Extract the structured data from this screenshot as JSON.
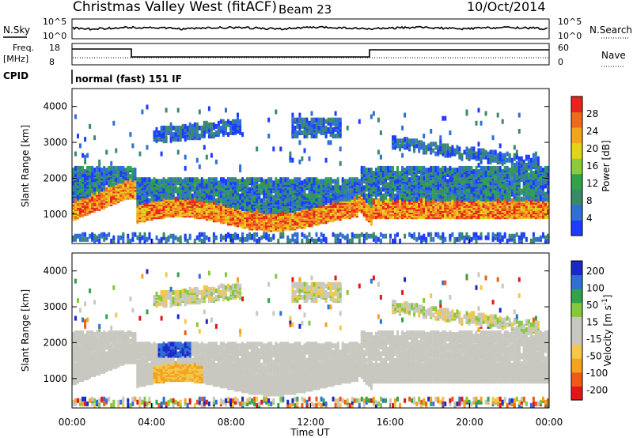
{
  "header": {
    "station": "Christmas Valley West (fitACF)",
    "beam": "Beam 23",
    "date": "10/Oct/2014"
  },
  "noise_panel": {
    "left_label": "N.Sky",
    "right_label": "N.Search",
    "left_ticks": [
      "10^5",
      "10^0"
    ],
    "right_ticks": [
      "10^5",
      "10^0"
    ]
  },
  "freq_panel": {
    "left_label_1": "Freq.",
    "left_label_2": "[MHz]",
    "right_label": "Nave",
    "left_ticks": [
      "18",
      "8"
    ],
    "right_ticks": [
      "60",
      "0"
    ]
  },
  "cpid": {
    "label": "CPID",
    "value": "normal (fast) 151 IF"
  },
  "colors": {
    "power_scale": [
      "#1e3cff",
      "#2f6fd6",
      "#3a8a6a",
      "#2ea34a",
      "#8ccc3c",
      "#e3d21e",
      "#f5a21e",
      "#f06a1e",
      "#e8241e"
    ],
    "velocity_scale": [
      "#e01818",
      "#f05a14",
      "#f5a21e",
      "#f3c84a",
      "#c8c8c0",
      "#c8c8c0",
      "#86c83c",
      "#2ea34a",
      "#2f6fd6",
      "#1a28c8"
    ]
  },
  "chart_data": [
    {
      "type": "heatmap",
      "title": "Christmas Valley West (fitACF)",
      "subtitle": "Beam 23",
      "xlabel": "Time UT",
      "ylabel": "Slant Range [km]",
      "colorbar_label": "Power [dB]",
      "colorbar_ticks": [
        "4",
        "8",
        "12",
        "16",
        "20",
        "24",
        "28"
      ],
      "x_ticks": [
        "00:00",
        "04:00",
        "08:00",
        "12:00",
        "16:00",
        "20:00",
        "00:00"
      ],
      "y_ticks": [
        "1000",
        "2000",
        "3000",
        "4000"
      ],
      "xlim": [
        0,
        24
      ],
      "ylim": [
        180,
        4500
      ],
      "clim": [
        0,
        32
      ],
      "rows": [
        [
          0.0,
          1.0,
          1300,
          3
        ],
        [
          1.0,
          1.5,
          1150,
          6
        ],
        [
          2.0,
          2.8,
          1600,
          4
        ],
        [
          3.0,
          4.0,
          1000,
          5
        ],
        [
          4.0,
          6.0,
          900,
          7
        ],
        [
          6.0,
          8.0,
          920,
          6
        ],
        [
          8.0,
          10.0,
          1050,
          7
        ],
        [
          10.0,
          12.0,
          1000,
          5
        ],
        [
          12.0,
          14.3,
          1080,
          6
        ],
        [
          15.0,
          16.5,
          1200,
          9
        ],
        [
          16.5,
          19.0,
          1100,
          8
        ],
        [
          19.0,
          22.0,
          1150,
          8
        ],
        [
          22.0,
          24.0,
          1100,
          7
        ]
      ]
    },
    {
      "type": "heatmap",
      "title": "",
      "xlabel": "Time UT",
      "ylabel": "Slant Range [km]",
      "colorbar_label": "Velocity [m s^-1]",
      "colorbar_ticks": [
        "200",
        "100",
        "50",
        "15",
        "-15",
        "-50",
        "-100",
        "-200"
      ],
      "x_ticks": [
        "00:00",
        "04:00",
        "08:00",
        "12:00",
        "16:00",
        "20:00",
        "00:00"
      ],
      "y_ticks": [
        "1000",
        "2000",
        "3000",
        "4000"
      ],
      "xlim": [
        0,
        24
      ],
      "ylim": [
        180,
        4500
      ],
      "clim": [
        -250,
        250
      ]
    }
  ]
}
